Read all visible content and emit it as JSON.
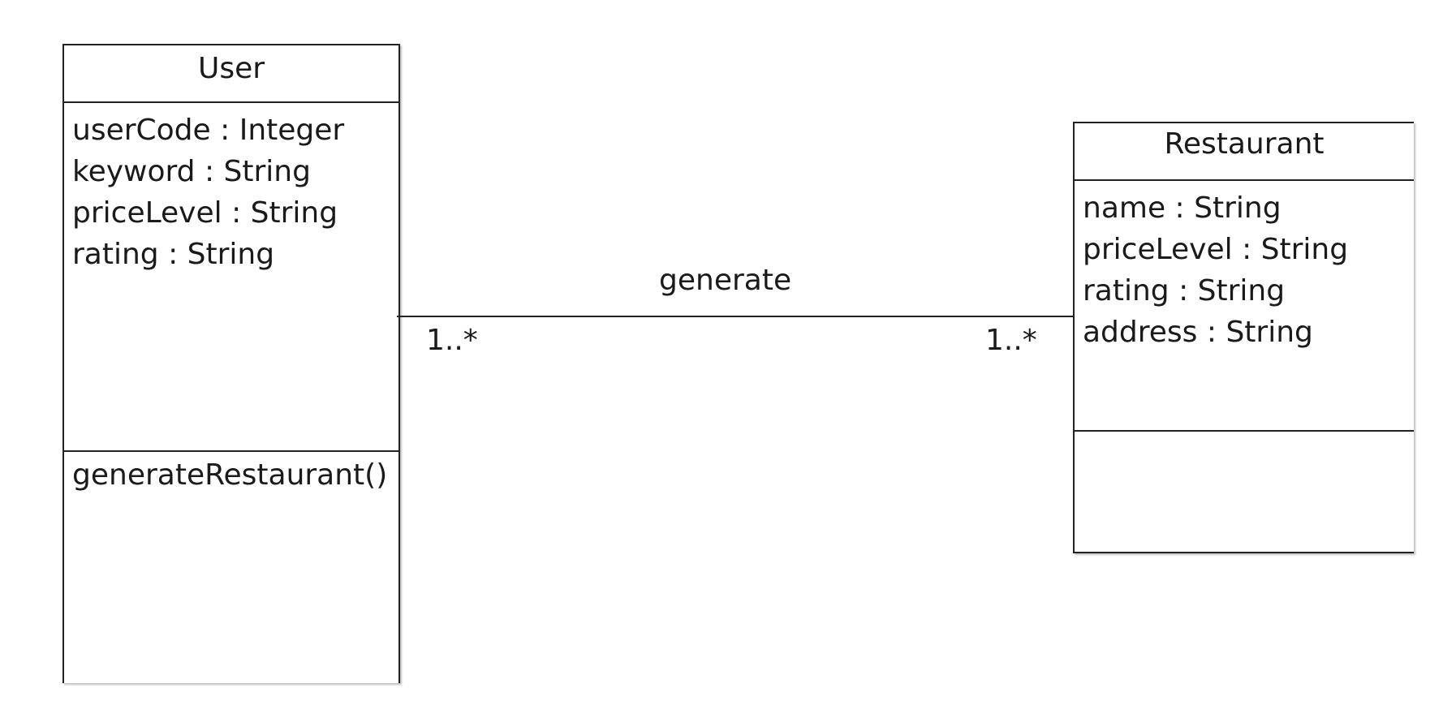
{
  "diagram": {
    "type": "uml-class-diagram",
    "classes": [
      {
        "name": "User",
        "attributes": [
          "userCode : Integer",
          "keyword : String",
          "priceLevel : String",
          "rating : String"
        ],
        "operations": [
          "generateRestaurant()"
        ]
      },
      {
        "name": "Restaurant",
        "attributes": [
          "name : String",
          "priceLevel : String",
          "rating : String",
          "address : String"
        ],
        "operations": []
      }
    ],
    "association": {
      "name": "generate",
      "from": "User",
      "to": "Restaurant",
      "from_multiplicity": "1..*",
      "to_multiplicity": "1..*"
    }
  },
  "colors": {
    "line": "#222222",
    "background": "#ffffff",
    "text": "#1a1a1a"
  }
}
